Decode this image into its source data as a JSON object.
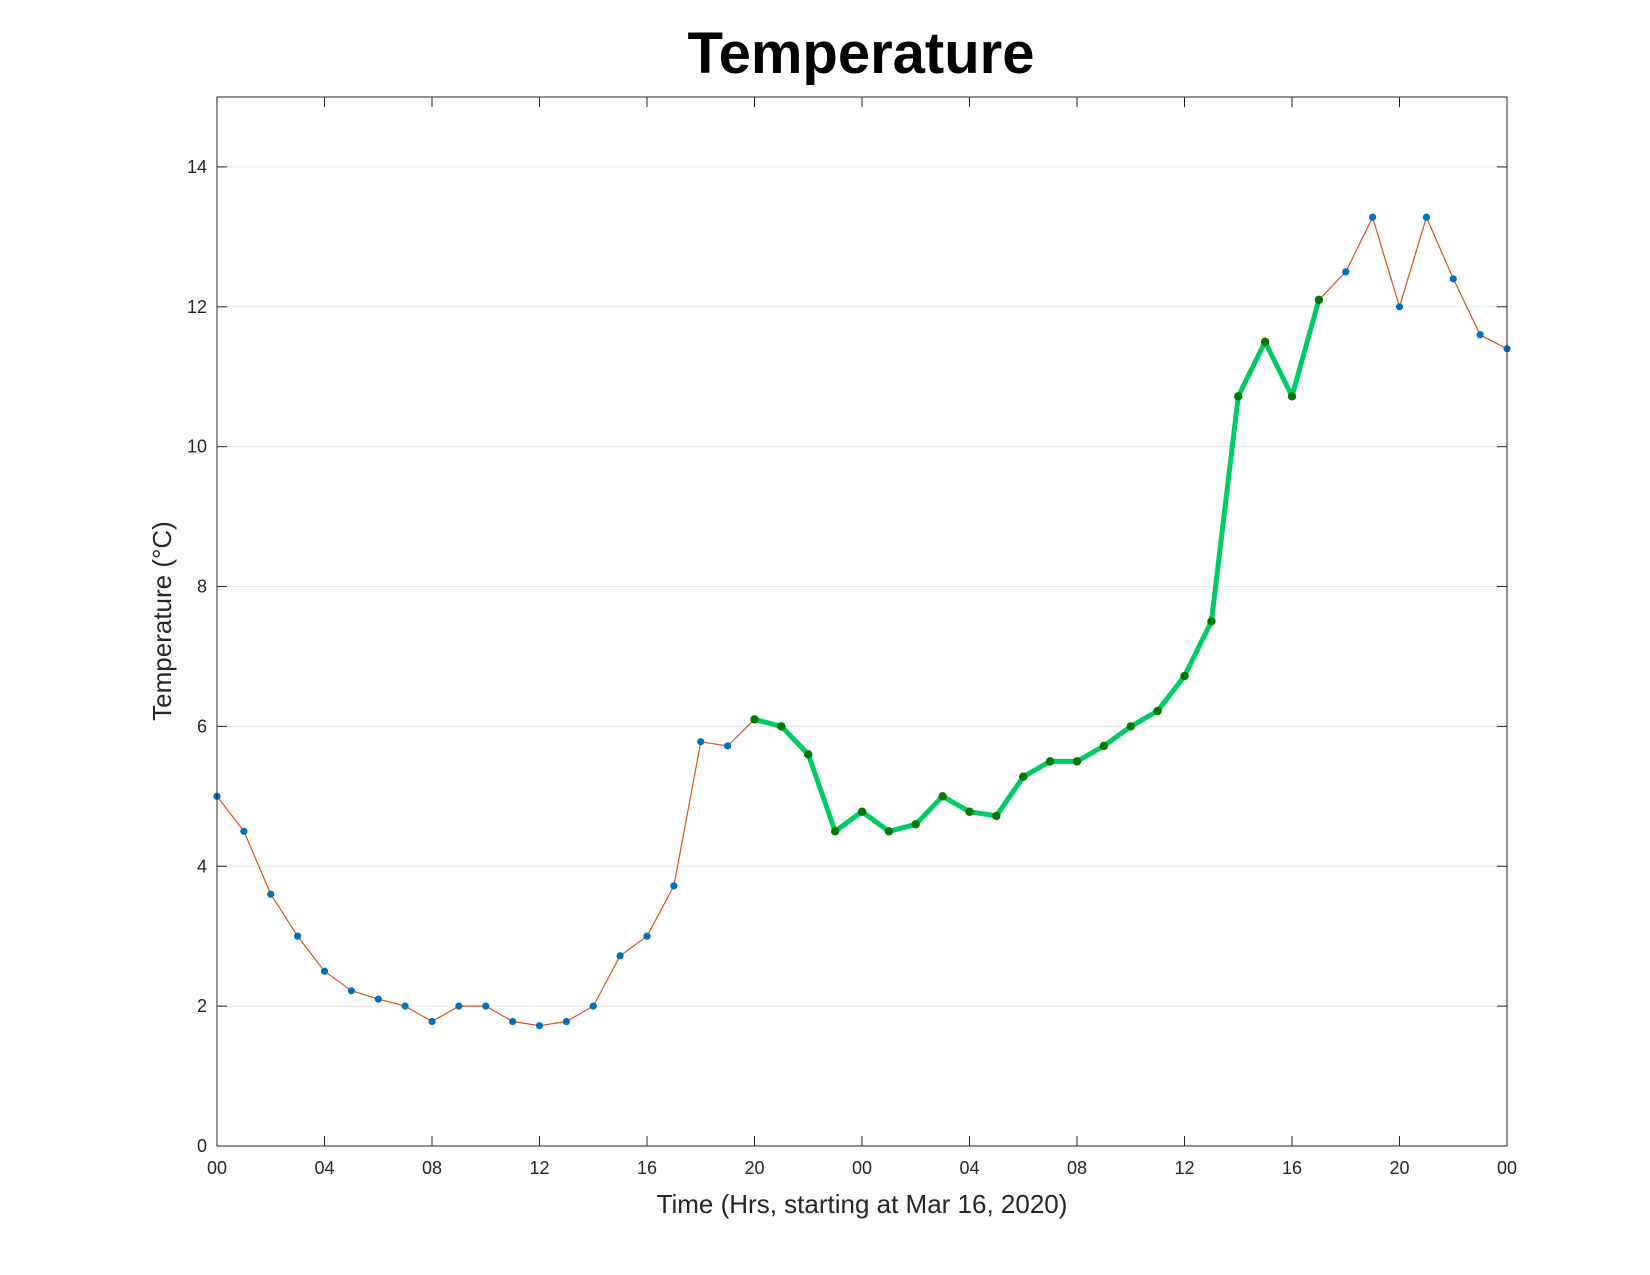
{
  "chart_data": {
    "type": "line",
    "title": "Temperature",
    "xlabel": "Time (Hrs, starting at Mar 16, 2020)",
    "ylabel": "Temperature (°C)",
    "x_unit": "hours",
    "xlim": [
      0,
      48
    ],
    "ylim": [
      0,
      15
    ],
    "yticks": [
      0,
      2,
      4,
      6,
      8,
      10,
      12,
      14
    ],
    "xticks": [
      {
        "value": 0,
        "label": "00"
      },
      {
        "value": 4,
        "label": "04"
      },
      {
        "value": 8,
        "label": "08"
      },
      {
        "value": 12,
        "label": "12"
      },
      {
        "value": 16,
        "label": "16"
      },
      {
        "value": 20,
        "label": "20"
      },
      {
        "value": 24,
        "label": "00"
      },
      {
        "value": 28,
        "label": "04"
      },
      {
        "value": 32,
        "label": "08"
      },
      {
        "value": 36,
        "label": "12"
      },
      {
        "value": 40,
        "label": "16"
      },
      {
        "value": 44,
        "label": "20"
      },
      {
        "value": 48,
        "label": "00"
      }
    ],
    "grid": "horizontal",
    "legend": "none",
    "series": [
      {
        "style": "thin-line-with-markers",
        "line_color": "#d95319",
        "marker_color": "#0072bd",
        "x": [
          0,
          1,
          2,
          3,
          4,
          5,
          6,
          7,
          8,
          9,
          10,
          11,
          12,
          13,
          14,
          15,
          16,
          17,
          18,
          19,
          20,
          21,
          22,
          23,
          24,
          25,
          26,
          27,
          28,
          29,
          30,
          31,
          32,
          33,
          34,
          35,
          36,
          37,
          38,
          39,
          40,
          41,
          42,
          43,
          44,
          45,
          46,
          47,
          48
        ],
        "y": [
          5.0,
          4.5,
          3.6,
          3.0,
          2.5,
          2.22,
          2.1,
          2.0,
          1.78,
          2.0,
          2.0,
          1.78,
          1.72,
          1.78,
          2.0,
          2.72,
          3.0,
          3.72,
          5.78,
          5.72,
          6.1,
          6.0,
          5.6,
          4.5,
          4.78,
          4.5,
          4.6,
          5.0,
          4.78,
          4.72,
          5.28,
          5.5,
          5.5,
          5.72,
          6.0,
          6.22,
          6.72,
          7.5,
          10.72,
          11.5,
          10.72,
          12.1,
          12.5,
          13.28,
          12.0,
          13.28,
          12.4,
          11.6,
          11.4
        ]
      },
      {
        "style": "thick-highlight-line",
        "line_color": "#00cc66",
        "marker_color": "#007a00",
        "x": [
          20,
          21,
          22,
          23,
          24,
          25,
          26,
          27,
          28,
          29,
          30,
          31,
          32,
          33,
          34,
          35,
          36,
          37,
          38,
          39,
          40,
          41
        ],
        "y": [
          6.1,
          6.0,
          5.6,
          4.5,
          4.78,
          4.5,
          4.6,
          5.0,
          4.78,
          4.72,
          5.28,
          5.5,
          5.5,
          5.72,
          6.0,
          6.22,
          6.72,
          7.5,
          10.72,
          11.5,
          10.72,
          12.1
        ]
      }
    ]
  }
}
